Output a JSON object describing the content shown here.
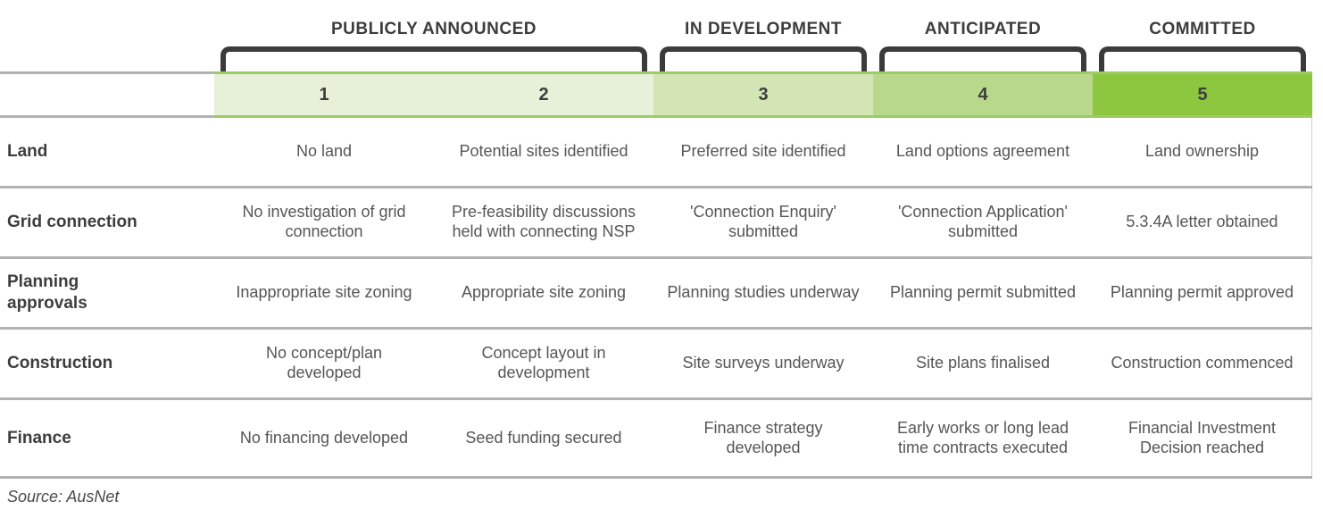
{
  "colors": {
    "bracket": "#3b3b3b",
    "divider": "#b2b2b2",
    "band-border": "#9ccd64"
  },
  "groups": [
    {
      "label": "PUBLICLY ANNOUNCED",
      "span": 2
    },
    {
      "label": "IN DEVELOPMENT",
      "span": 1
    },
    {
      "label": "ANTICIPATED",
      "span": 1
    },
    {
      "label": "COMMITTED",
      "span": 1
    }
  ],
  "stages": [
    {
      "number": "1",
      "color": "#e7f0d9"
    },
    {
      "number": "2",
      "color": "#e7f0d9"
    },
    {
      "number": "3",
      "color": "#d3e5b4"
    },
    {
      "number": "4",
      "color": "#b8d98c"
    },
    {
      "number": "5",
      "color": "#8dc63f"
    }
  ],
  "rows": [
    {
      "label": "Land",
      "cells": [
        "No land",
        "Potential sites identified",
        "Preferred site identified",
        "Land options agreement",
        "Land ownership"
      ]
    },
    {
      "label": "Grid connection",
      "cells": [
        "No investigation of grid connection",
        "Pre-feasibility discussions held with connecting NSP",
        "'Connection Enquiry' submitted",
        "'Connection Application' submitted",
        "5.3.4A letter obtained"
      ]
    },
    {
      "label": "Planning approvals",
      "cells": [
        "Inappropriate site zoning",
        "Appropriate site zoning",
        "Planning studies underway",
        "Planning permit submitted",
        "Planning permit approved"
      ]
    },
    {
      "label": "Construction",
      "cells": [
        "No concept/plan developed",
        "Concept layout in development",
        "Site surveys underway",
        "Site plans finalised",
        "Construction commenced"
      ]
    },
    {
      "label": "Finance",
      "cells": [
        "No financing developed",
        "Seed funding secured",
        "Finance strategy developed",
        "Early works or long lead time contracts executed",
        "Financial Investment Decision reached"
      ]
    }
  ],
  "source": "Source: AusNet"
}
